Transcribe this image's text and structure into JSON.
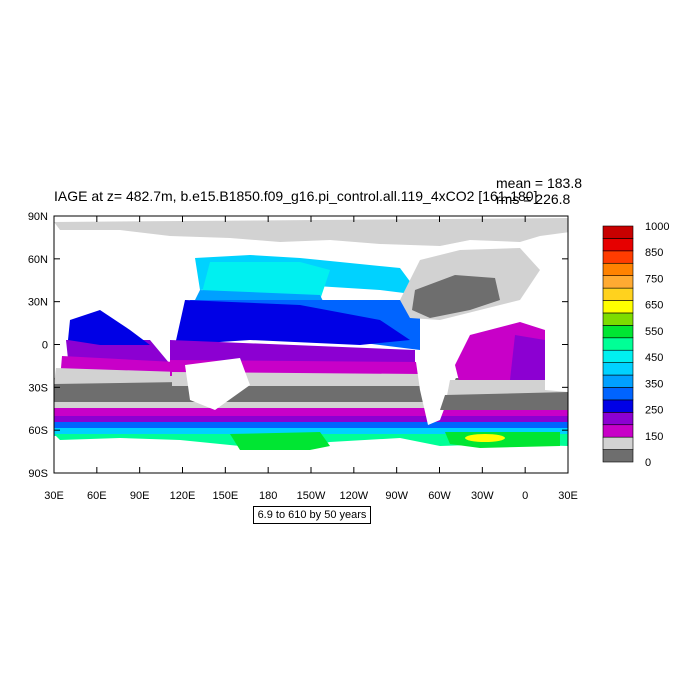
{
  "title": "IAGE at z= 482.7m, b.e15.B1850.f09_g16.pi_control.all.119_4xCO2 [161-180]",
  "stats": {
    "mean": "mean = 183.8",
    "rms": "rms = 226.8"
  },
  "subtitle": "6.9 to 610 by 50 years",
  "axes": {
    "x_ticks": [
      "30E",
      "60E",
      "90E",
      "120E",
      "150E",
      "180",
      "150W",
      "120W",
      "90W",
      "60W",
      "30W",
      "0",
      "30E"
    ],
    "y_ticks": [
      "90N",
      "60N",
      "30N",
      "0",
      "30S",
      "60S",
      "90S"
    ]
  },
  "colorbar": {
    "labels": [
      "1000",
      "850",
      "750",
      "650",
      "550",
      "450",
      "350",
      "250",
      "150",
      "0"
    ],
    "colors": [
      "#6e6e6e",
      "#d2d2d2",
      "#c800c8",
      "#8c00d2",
      "#0000e6",
      "#0064ff",
      "#00a0ff",
      "#00d2ff",
      "#00f0f0",
      "#00ff96",
      "#00e632",
      "#7ddc00",
      "#ffff00",
      "#ffd21e",
      "#ffaa32",
      "#ff8200",
      "#ff3c00",
      "#e60000",
      "#c80000"
    ]
  },
  "land_color": "#ffffff",
  "missing_color": "#d2d2d2"
}
